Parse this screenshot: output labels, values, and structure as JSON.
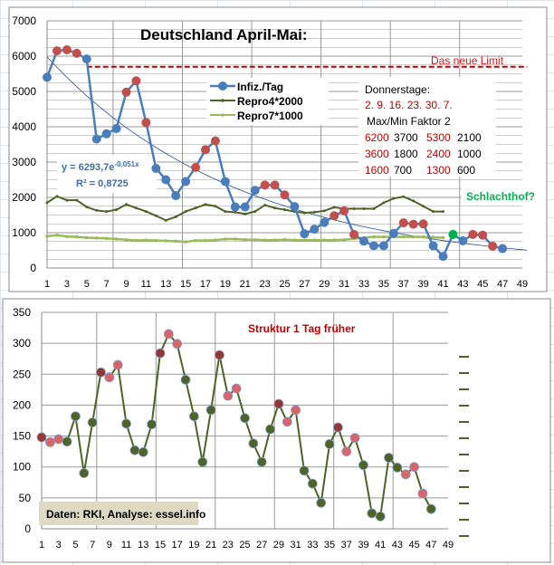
{
  "chart_data": [
    {
      "type": "line",
      "title": "Deutschland April-Mai:",
      "x_ticks": [
        1,
        3,
        5,
        7,
        9,
        11,
        13,
        15,
        17,
        19,
        21,
        23,
        25,
        27,
        29,
        31,
        33,
        35,
        37,
        39,
        41,
        43,
        45,
        47,
        49
      ],
      "y_ticks": [
        0,
        1000,
        2000,
        3000,
        4000,
        5000,
        6000,
        7000
      ],
      "ylim": [
        0,
        7000
      ],
      "xlim": [
        1,
        49
      ],
      "series": [
        {
          "name": "Infiz./Tag",
          "color": "#4a7ebb",
          "values": [
            5400,
            6150,
            6180,
            6080,
            5920,
            3650,
            3800,
            3950,
            4980,
            5300,
            4120,
            2820,
            2500,
            2050,
            2450,
            2850,
            3350,
            3600,
            2450,
            1730,
            1730,
            2200,
            2350,
            2350,
            2070,
            1740,
            970,
            1100,
            1290,
            1480,
            1620,
            950,
            760,
            630,
            630,
            980,
            1280,
            1240,
            1250,
            630,
            330,
            950,
            770,
            950,
            930,
            620,
            550
          ],
          "marker_colors_by_day": {
            "red": [
              2,
              3,
              4,
              9,
              10,
              11,
              16,
              17,
              18,
              23,
              24,
              25,
              30,
              31,
              32,
              37,
              38,
              39,
              44,
              45,
              46
            ],
            "green": [
              42
            ]
          }
        },
        {
          "name": "Repro4*2000",
          "color": "#4f6228",
          "values": [
            1850,
            2030,
            1920,
            1920,
            1730,
            1630,
            1600,
            1650,
            1800,
            1700,
            1600,
            1480,
            1350,
            1450,
            1600,
            1700,
            1800,
            1750,
            1600,
            1580,
            1530,
            1600,
            1780,
            1700,
            1650,
            1600,
            1560,
            1580,
            1620,
            1720,
            1680,
            1680,
            1680,
            1680,
            1850,
            1970,
            2020,
            1900,
            1750,
            1600,
            1600
          ]
        },
        {
          "name": "Repro7*1000",
          "color": "#9bbb59",
          "values": [
            900,
            930,
            890,
            880,
            860,
            850,
            840,
            820,
            800,
            780,
            790,
            780,
            770,
            760,
            740,
            780,
            780,
            790,
            820,
            820,
            800,
            800,
            790,
            790,
            800,
            790,
            790,
            790,
            790,
            790,
            800,
            830,
            860,
            880,
            880,
            880,
            880,
            880,
            880,
            870,
            860
          ]
        }
      ],
      "trendline": {
        "a": 6293.7,
        "b": -0.051,
        "equation": "y = 6293,7e",
        "exponent": "-0,051x",
        "r2": "R² = 0,8725"
      },
      "limit": {
        "value": 5700,
        "label": "Das neue Limit",
        "from": 5
      },
      "annotations": {
        "donnerstage_title": "Donnerstage:",
        "donnerstage_dates": "2. 9. 16. 23. 30. 7.",
        "faktor": "Max/Min Faktor 2",
        "pairs": [
          [
            "6200",
            "3700",
            "5300",
            "2100"
          ],
          [
            "3600",
            "1800",
            "2400",
            "1000"
          ],
          [
            "1600",
            "700",
            "1300",
            "600"
          ]
        ],
        "schlachthof": "Schlachthof?"
      }
    },
    {
      "type": "line",
      "title": "Struktur 1 Tag früher",
      "x_ticks": [
        1,
        3,
        5,
        7,
        9,
        11,
        13,
        15,
        17,
        19,
        21,
        23,
        25,
        27,
        29,
        31,
        33,
        35,
        37,
        39,
        41,
        43,
        45,
        47,
        49
      ],
      "y_ticks": [
        0,
        50,
        100,
        150,
        200,
        250,
        300,
        350
      ],
      "ylim": [
        0,
        350
      ],
      "xlim": [
        1,
        49
      ],
      "series": [
        {
          "name": "Struktur",
          "color": "#4f6228",
          "values": [
            148,
            140,
            145,
            141,
            182,
            90,
            172,
            253,
            245,
            265,
            170,
            127,
            124,
            169,
            284,
            315,
            299,
            241,
            182,
            108,
            192,
            281,
            215,
            227,
            179,
            138,
            108,
            161,
            202,
            173,
            192,
            94,
            73,
            42,
            137,
            164,
            125,
            147,
            103,
            25,
            20,
            115,
            99,
            88,
            100,
            57,
            32
          ],
          "marker_colors_by_day": {
            "darkred": [
              1,
              8,
              15,
              22,
              29,
              36
            ],
            "pink": [
              2,
              3,
              9,
              10,
              16,
              17,
              23,
              24,
              30,
              31,
              37,
              38,
              44,
              45,
              46
            ]
          }
        }
      ],
      "source_label": "Daten: RKI, Analyse: essel.info"
    }
  ]
}
